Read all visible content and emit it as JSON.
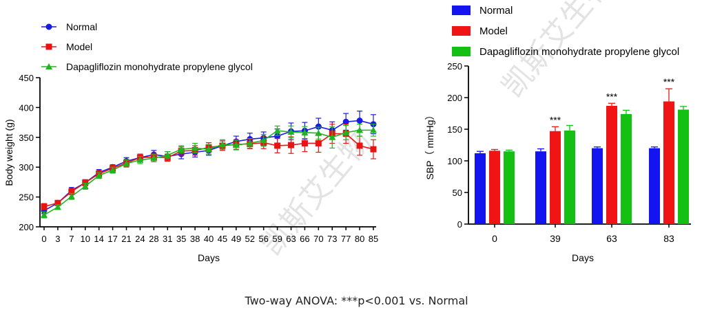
{
  "watermark": {
    "text": "凯斯艾生物",
    "color": "#d8d8d8"
  },
  "footnote": "Two-way ANOVA: ***p<0.001 vs. Normal",
  "chart_data": [
    {
      "type": "line",
      "title": "",
      "xlabel": "Days",
      "ylabel": "Body weight (g)",
      "ylim": [
        200,
        450
      ],
      "yticks": [
        200,
        250,
        300,
        350,
        400,
        450
      ],
      "x": [
        0,
        3,
        7,
        10,
        14,
        17,
        21,
        24,
        28,
        31,
        35,
        38,
        40,
        45,
        49,
        52,
        56,
        59,
        63,
        66,
        70,
        73,
        77,
        80,
        85
      ],
      "legend": "top-left",
      "series": [
        {
          "name": "Normal",
          "color": "#1a1ae6",
          "marker": "circle",
          "values": [
            227,
            240,
            261,
            274,
            291,
            300,
            310,
            316,
            321,
            318,
            322,
            325,
            328,
            336,
            343,
            347,
            349,
            352,
            360,
            361,
            368,
            362,
            376,
            378,
            372
          ],
          "errors": [
            5,
            4,
            5,
            5,
            5,
            4,
            6,
            6,
            7,
            8,
            8,
            8,
            8,
            8,
            9,
            10,
            10,
            12,
            14,
            14,
            14,
            14,
            14,
            16,
            16
          ]
        },
        {
          "name": "Model",
          "color": "#e81414",
          "marker": "square",
          "values": [
            234,
            240,
            259,
            274,
            289,
            298,
            307,
            316,
            317,
            316,
            327,
            328,
            333,
            336,
            338,
            339,
            341,
            336,
            337,
            340,
            340,
            356,
            356,
            336,
            330
          ],
          "errors": [
            5,
            4,
            5,
            5,
            5,
            5,
            6,
            6,
            6,
            6,
            7,
            8,
            8,
            8,
            8,
            8,
            10,
            12,
            14,
            14,
            15,
            16,
            16,
            16,
            16
          ]
        },
        {
          "name": "Dapagliflozin monohydrate propylene glycol",
          "color": "#1fb51f",
          "marker": "triangle",
          "values": [
            220,
            233,
            251,
            268,
            286,
            295,
            306,
            312,
            315,
            320,
            330,
            332,
            330,
            338,
            337,
            340,
            345,
            361,
            359,
            358,
            357,
            350,
            358,
            362,
            362
          ],
          "errors": [
            5,
            4,
            5,
            5,
            5,
            5,
            6,
            6,
            6,
            6,
            6,
            8,
            8,
            8,
            8,
            8,
            10,
            8,
            10,
            10,
            10,
            18,
            12,
            10,
            10
          ]
        }
      ]
    },
    {
      "type": "bar",
      "title": "",
      "xlabel": "Days",
      "ylabel": "SBP（ mmHg）",
      "ylim": [
        0,
        250
      ],
      "yticks": [
        0,
        50,
        100,
        150,
        200,
        250
      ],
      "categories": [
        "0",
        "39",
        "63",
        "83"
      ],
      "legend": "top-left",
      "series": [
        {
          "name": "Normal",
          "color": "#1414f0",
          "values": [
            112,
            115,
            120,
            120
          ],
          "errors": [
            3,
            4,
            2,
            2
          ]
        },
        {
          "name": "Model",
          "color": "#f01414",
          "values": [
            116,
            147,
            187,
            194
          ],
          "errors": [
            2,
            7,
            4,
            20
          ]
        },
        {
          "name": "Dapagliflozin monohydrate propylene glycol",
          "color": "#14c014",
          "values": [
            115,
            148,
            174,
            181
          ],
          "errors": [
            2,
            8,
            6,
            5
          ]
        }
      ],
      "annotations": [
        {
          "category": "39",
          "text": "***"
        },
        {
          "category": "63",
          "text": "***"
        },
        {
          "category": "83",
          "text": "***"
        }
      ]
    }
  ]
}
